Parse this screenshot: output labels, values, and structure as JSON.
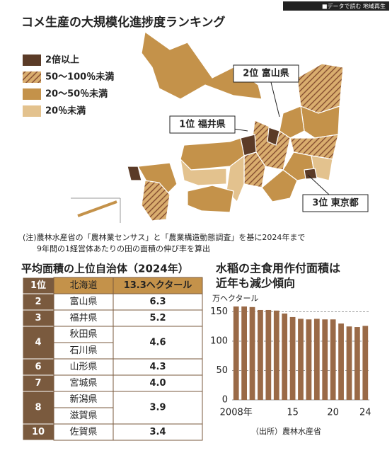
{
  "banner": "■データで読む 地域再生",
  "header": {
    "title": "コメ生産の大規模化進捗度ランキング"
  },
  "map": {
    "legend": [
      {
        "label": "2倍以上",
        "color": "#5b3b27"
      },
      {
        "label": "50〜100％未満",
        "color": "#9c6240",
        "pattern": "hatch"
      },
      {
        "label": "20〜50％未満",
        "color": "#c4924a"
      },
      {
        "label": "20％未満",
        "color": "#e3c28e"
      }
    ],
    "callouts": [
      "1位 福井県",
      "2位 富山県",
      "3位 東京都"
    ]
  },
  "note": [
    "(注)農林水産省の「農林業センサス」と「農業構造動態調査」を基に2024年まで",
    "9年間の1経営体あたりの田の面積の伸び率を算出"
  ],
  "table": {
    "title": "平均面積の上位自治体（2024年）",
    "rows": [
      {
        "rank": "1位",
        "names": [
          "北海道"
        ],
        "value": "13.3ヘクタール"
      },
      {
        "rank": "2",
        "names": [
          "富山県"
        ],
        "value": "6.3"
      },
      {
        "rank": "3",
        "names": [
          "福井県"
        ],
        "value": "5.2"
      },
      {
        "rank": "4",
        "names": [
          "秋田県",
          "石川県"
        ],
        "value": "4.6"
      },
      {
        "rank": "6",
        "names": [
          "山形県"
        ],
        "value": "4.3"
      },
      {
        "rank": "7",
        "names": [
          "宮城県"
        ],
        "value": "4.0"
      },
      {
        "rank": "8",
        "names": [
          "新潟県",
          "滋賀県"
        ],
        "value": "3.9"
      },
      {
        "rank": "10",
        "names": [
          "佐賀県"
        ],
        "value": "3.4"
      }
    ]
  },
  "chart_data": {
    "type": "bar",
    "title": [
      "水稲の主食用作付面積は",
      "近年も減少傾向"
    ],
    "unit": "万ヘクタール",
    "source": "（出所）農林水産省",
    "categories": [
      "2008年",
      null,
      null,
      null,
      null,
      null,
      null,
      "15",
      null,
      null,
      null,
      null,
      "20",
      null,
      null,
      null,
      "24"
    ],
    "values": [
      159,
      159,
      158,
      153,
      153,
      152,
      147,
      141,
      138,
      137,
      138,
      137,
      137,
      130,
      125,
      124,
      126
    ],
    "color": "#9a6a47",
    "ylim": [
      0,
      165
    ],
    "yticks": [
      0,
      50,
      100,
      150
    ],
    "grid": true
  }
}
